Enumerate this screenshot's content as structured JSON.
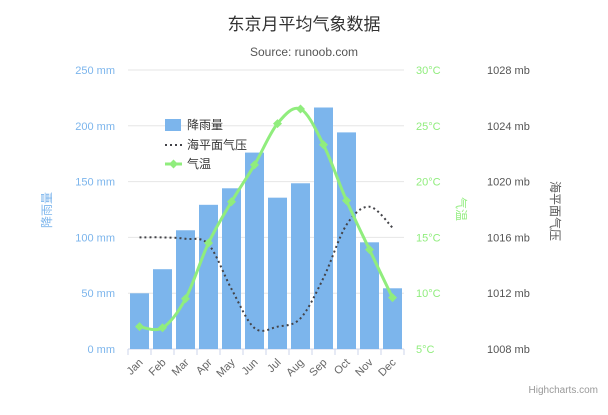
{
  "title": "东京月平均气象数据",
  "subtitle": "Source: runoob.com",
  "credit": "Highcharts.com",
  "colors": {
    "rainfall": "#7cb5ec",
    "pressure": "#434348",
    "temperature": "#90ed7d",
    "grid": "#e6e6e6",
    "axis_line": "#ccd6eb",
    "x_label": "#666666",
    "pressure_label": "#555555",
    "legend_text": "#333333"
  },
  "legend": {
    "items": [
      {
        "label": "降雨量",
        "symbol": "column",
        "color": "#7cb5ec"
      },
      {
        "label": "海平面气压",
        "symbol": "dotted-line",
        "color": "#434348"
      },
      {
        "label": "气温",
        "symbol": "line-diamond",
        "color": "#90ed7d"
      }
    ]
  },
  "axes": {
    "x": {
      "categories": [
        "Jan",
        "Feb",
        "Mar",
        "Apr",
        "May",
        "Jun",
        "Jul",
        "Aug",
        "Sep",
        "Oct",
        "Nov",
        "Dec"
      ]
    },
    "rainfall": {
      "title": "降雨量",
      "tick_labels": [
        "250 mm",
        "200 mm",
        "150 mm",
        "100 mm",
        "50 mm",
        "0 mm"
      ],
      "min": 0,
      "max": 250
    },
    "temperature": {
      "title": "气温",
      "tick_labels": [
        "30°C",
        "25°C",
        "20°C",
        "15°C",
        "10°C",
        "5°C"
      ],
      "min": 5,
      "max": 30
    },
    "pressure": {
      "title": "海平面气压",
      "tick_labels": [
        "1028 mb",
        "1024 mb",
        "1020 mb",
        "1016 mb",
        "1012 mb",
        "1008 mb"
      ],
      "min": 1008,
      "max": 1028
    }
  },
  "chart_data": {
    "type": "combination",
    "title": "东京月平均气象数据",
    "subtitle": "Source: runoob.com",
    "categories": [
      "Jan",
      "Feb",
      "Mar",
      "Apr",
      "May",
      "Jun",
      "Jul",
      "Aug",
      "Sep",
      "Oct",
      "Nov",
      "Dec"
    ],
    "grid": true,
    "legend_position": "top-left-floating",
    "series": [
      {
        "name": "降雨量",
        "type": "bar",
        "unit": "mm",
        "color": "#7cb5ec",
        "axis": "rainfall",
        "ylim": [
          0,
          250
        ],
        "values": [
          49.9,
          71.5,
          106.4,
          129.2,
          144.0,
          176.0,
          135.6,
          148.5,
          216.4,
          194.1,
          95.6,
          54.4
        ]
      },
      {
        "name": "海平面气压",
        "type": "line",
        "dash": "shortdot",
        "unit": "mb",
        "color": "#434348",
        "axis": "pressure",
        "ylim": [
          1008,
          1028
        ],
        "values": [
          1016,
          1016,
          1015.9,
          1015.5,
          1012.3,
          1009.5,
          1009.6,
          1010.2,
          1013.1,
          1016.9,
          1018.2,
          1016.7
        ]
      },
      {
        "name": "气温",
        "type": "line",
        "marker": "diamond",
        "unit": "°C",
        "color": "#90ed7d",
        "axis": "temperature",
        "ylim": [
          5,
          30
        ],
        "values": [
          7.0,
          6.9,
          9.5,
          14.5,
          18.2,
          21.5,
          25.2,
          26.5,
          23.3,
          18.3,
          13.9,
          9.6
        ]
      }
    ]
  }
}
